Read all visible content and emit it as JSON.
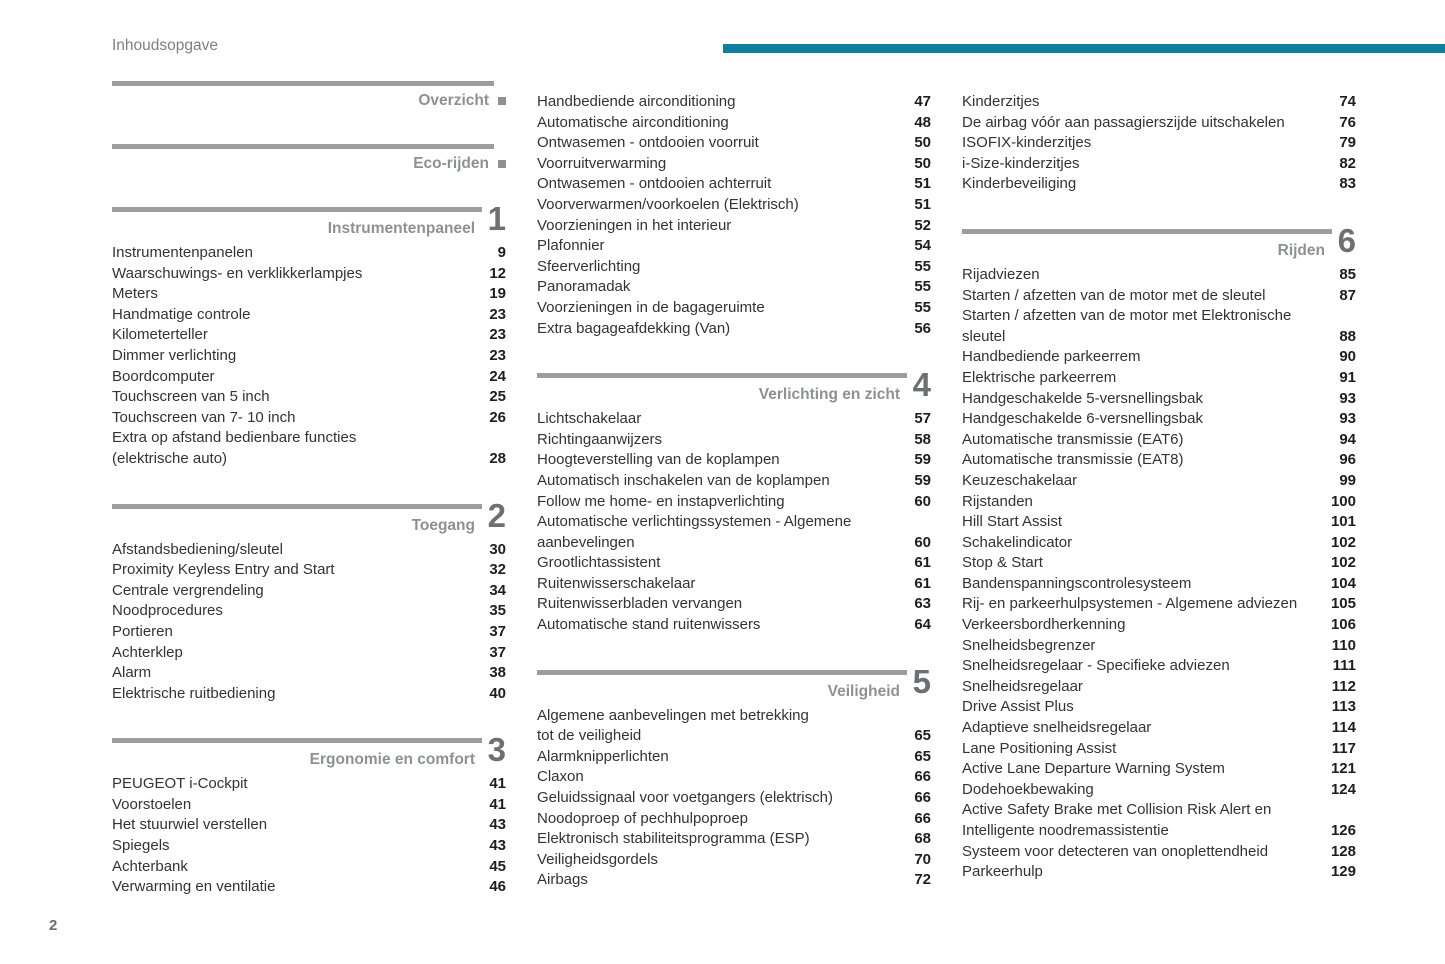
{
  "document": {
    "title": "Inhoudsopgave",
    "page_number": "2",
    "accent_color": "#0f7f9f"
  },
  "columns": [
    {
      "sections": [
        {
          "kind": "intro",
          "title": "Overzicht"
        },
        {
          "kind": "intro",
          "title": "Eco-rijden"
        },
        {
          "kind": "chapter",
          "number": "1",
          "title": "Instrumentenpaneel",
          "items": [
            {
              "label": "Instrumentenpanelen",
              "page": "9"
            },
            {
              "label": "Waarschuwings- en verklikkerlampjes",
              "page": "12"
            },
            {
              "label": "Meters",
              "page": "19"
            },
            {
              "label": "Handmatige controle",
              "page": "23"
            },
            {
              "label": "Kilometerteller",
              "page": "23"
            },
            {
              "label": "Dimmer verlichting",
              "page": "23"
            },
            {
              "label": "Boordcomputer",
              "page": "24"
            },
            {
              "label": "Touchscreen van 5 inch",
              "page": "25"
            },
            {
              "label": "Touchscreen van 7- 10 inch",
              "page": "26"
            },
            {
              "label": "Extra op afstand bedienbare functies\n(elektrische auto)",
              "page": "28"
            }
          ]
        },
        {
          "kind": "chapter",
          "number": "2",
          "title": "Toegang",
          "items": [
            {
              "label": "Afstandsbediening/sleutel",
              "page": "30"
            },
            {
              "label": "Proximity Keyless Entry and Start",
              "page": "32"
            },
            {
              "label": "Centrale vergrendeling",
              "page": "34"
            },
            {
              "label": "Noodprocedures",
              "page": "35"
            },
            {
              "label": "Portieren",
              "page": "37"
            },
            {
              "label": "Achterklep",
              "page": "37"
            },
            {
              "label": "Alarm",
              "page": "38"
            },
            {
              "label": "Elektrische ruitbediening",
              "page": "40"
            }
          ]
        },
        {
          "kind": "chapter",
          "number": "3",
          "title": "Ergonomie en comfort",
          "items": [
            {
              "label": "PEUGEOT i-Cockpit",
              "page": "41"
            },
            {
              "label": "Voorstoelen",
              "page": "41"
            },
            {
              "label": "Het stuurwiel verstellen",
              "page": "43"
            },
            {
              "label": "Spiegels",
              "page": "43"
            },
            {
              "label": "Achterbank",
              "page": "45"
            },
            {
              "label": "Verwarming en ventilatie",
              "page": "46"
            }
          ]
        }
      ]
    },
    {
      "sections": [
        {
          "kind": "continuation",
          "items": [
            {
              "label": "Handbediende airconditioning",
              "page": "47"
            },
            {
              "label": "Automatische airconditioning",
              "page": "48"
            },
            {
              "label": "Ontwasemen - ontdooien voorruit",
              "page": "50"
            },
            {
              "label": "Voorruitverwarming",
              "page": "50"
            },
            {
              "label": "Ontwasemen - ontdooien achterruit",
              "page": "51"
            },
            {
              "label": "Voorverwarmen/voorkoelen (Elektrisch)",
              "page": "51"
            },
            {
              "label": "Voorzieningen in het interieur",
              "page": "52"
            },
            {
              "label": "Plafonnier",
              "page": "54"
            },
            {
              "label": "Sfeerverlichting",
              "page": "55"
            },
            {
              "label": "Panoramadak",
              "page": "55"
            },
            {
              "label": "Voorzieningen in de bagageruimte",
              "page": "55"
            },
            {
              "label": "Extra bagageafdekking (Van)",
              "page": "56"
            }
          ]
        },
        {
          "kind": "chapter",
          "number": "4",
          "title": "Verlichting en zicht",
          "items": [
            {
              "label": "Lichtschakelaar",
              "page": "57"
            },
            {
              "label": "Richtingaanwijzers",
              "page": "58"
            },
            {
              "label": "Hoogteverstelling van de koplampen",
              "page": "59"
            },
            {
              "label": "Automatisch inschakelen van de koplampen",
              "page": "59"
            },
            {
              "label": "Follow me home- en instapverlichting",
              "page": "60"
            },
            {
              "label": "Automatische verlichtingssystemen - Algemene\naanbevelingen",
              "page": "60"
            },
            {
              "label": "Grootlichtassistent",
              "page": "61"
            },
            {
              "label": "Ruitenwisserschakelaar",
              "page": "61"
            },
            {
              "label": "Ruitenwisserbladen vervangen",
              "page": "63"
            },
            {
              "label": "Automatische stand ruitenwissers",
              "page": "64"
            }
          ]
        },
        {
          "kind": "chapter",
          "number": "5",
          "title": "Veiligheid",
          "items": [
            {
              "label": "Algemene aanbevelingen met betrekking\ntot de veiligheid",
              "page": "65"
            },
            {
              "label": "Alarmknipperlichten",
              "page": "65"
            },
            {
              "label": "Claxon",
              "page": "66"
            },
            {
              "label": "Geluidssignaal voor voetgangers (elektrisch)",
              "page": "66"
            },
            {
              "label": "Noodoproep of pechhulpoproep",
              "page": "66"
            },
            {
              "label": "Elektronisch stabiliteitsprogramma (ESP)",
              "page": "68"
            },
            {
              "label": "Veiligheidsgordels",
              "page": "70"
            },
            {
              "label": "Airbags",
              "page": "72"
            }
          ]
        }
      ]
    },
    {
      "sections": [
        {
          "kind": "continuation",
          "items": [
            {
              "label": "Kinderzitjes",
              "page": "74"
            },
            {
              "label": "De airbag vóór aan passagierszijde uitschakelen",
              "page": "76"
            },
            {
              "label": "ISOFIX-kinderzitjes",
              "page": "79"
            },
            {
              "label": "i-Size-kinderzitjes",
              "page": "82"
            },
            {
              "label": "Kinderbeveiliging",
              "page": "83"
            }
          ]
        },
        {
          "kind": "chapter",
          "number": "6",
          "title": "Rijden",
          "items": [
            {
              "label": "Rijadviezen",
              "page": "85"
            },
            {
              "label": "Starten / afzetten van de motor met de sleutel",
              "page": "87"
            },
            {
              "label": "Starten / afzetten van de motor met Elektronische\nsleutel",
              "page": "88"
            },
            {
              "label": "Handbediende parkeerrem",
              "page": "90"
            },
            {
              "label": "Elektrische parkeerrem",
              "page": "91"
            },
            {
              "label": "Handgeschakelde 5-versnellingsbak",
              "page": "93"
            },
            {
              "label": "Handgeschakelde 6-versnellingsbak",
              "page": "93"
            },
            {
              "label": "Automatische transmissie (EAT6)",
              "page": "94"
            },
            {
              "label": "Automatische transmissie (EAT8)",
              "page": "96"
            },
            {
              "label": "Keuzeschakelaar",
              "page": "99"
            },
            {
              "label": "Rijstanden",
              "page": "100"
            },
            {
              "label": "Hill Start Assist",
              "page": "101"
            },
            {
              "label": "Schakelindicator",
              "page": "102"
            },
            {
              "label": "Stop & Start",
              "page": "102"
            },
            {
              "label": "Bandenspanningscontrolesysteem",
              "page": "104"
            },
            {
              "label": "Rij- en parkeerhulpsystemen - Algemene adviezen",
              "page": "105"
            },
            {
              "label": "Verkeersbordherkenning",
              "page": "106"
            },
            {
              "label": "Snelheidsbegrenzer",
              "page": "110"
            },
            {
              "label": "Snelheidsregelaar - Specifieke adviezen",
              "page": "111"
            },
            {
              "label": "Snelheidsregelaar",
              "page": "112"
            },
            {
              "label": "Drive Assist Plus",
              "page": "113"
            },
            {
              "label": "Adaptieve snelheidsregelaar",
              "page": "114"
            },
            {
              "label": "Lane Positioning Assist",
              "page": "117"
            },
            {
              "label": "Active Lane Departure Warning System",
              "page": "121"
            },
            {
              "label": "Dodehoekbewaking",
              "page": "124"
            },
            {
              "label": "Active Safety Brake met Collision Risk Alert en\nIntelligente noodremassistentie",
              "page": "126"
            },
            {
              "label": "Systeem voor detecteren van onoplettendheid",
              "page": "128"
            },
            {
              "label": "Parkeerhulp",
              "page": "129"
            }
          ]
        }
      ]
    }
  ]
}
